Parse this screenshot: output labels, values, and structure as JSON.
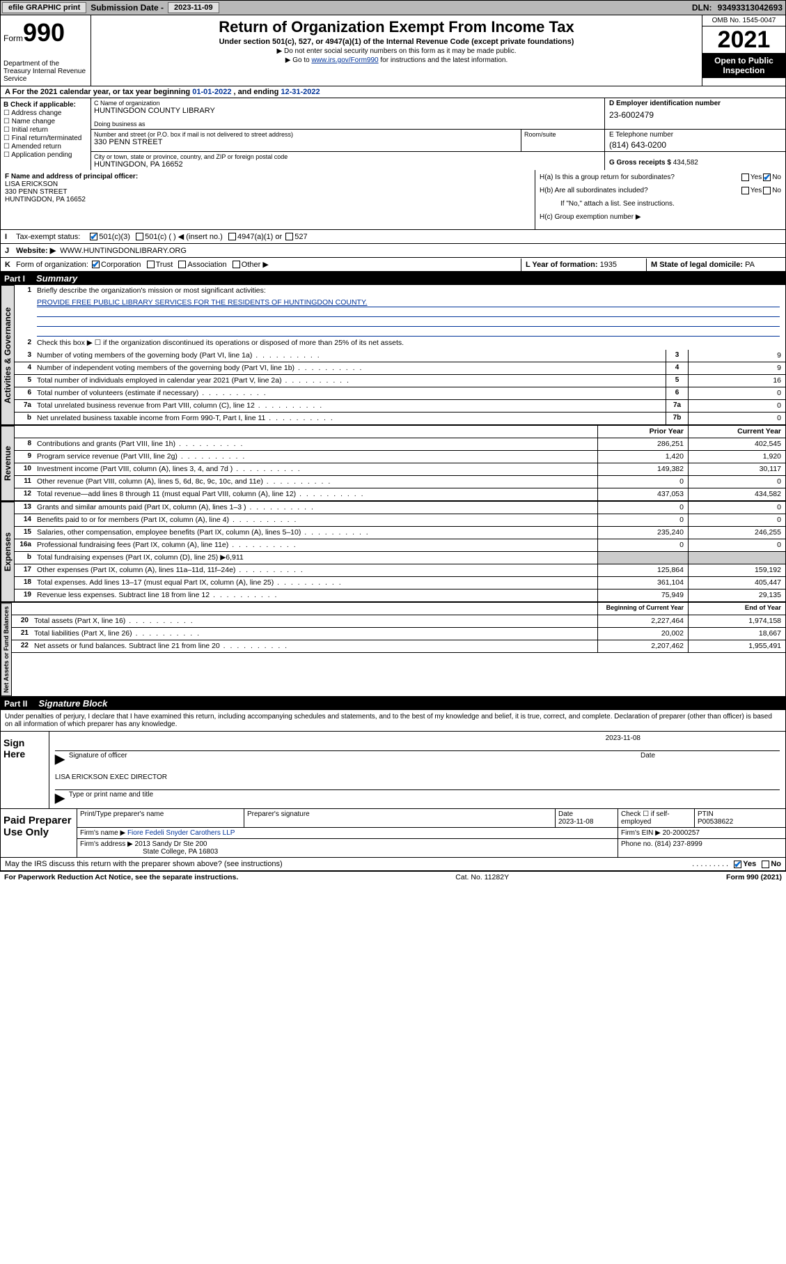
{
  "topbar": {
    "efile": "efile GRAPHIC print",
    "submission_label": "Submission Date - ",
    "submission_date": "2023-11-09",
    "dln_label": "DLN: ",
    "dln": "93493313042693"
  },
  "header": {
    "form_prefix": "Form",
    "form_no": "990",
    "dept": "Department of the Treasury\nInternal Revenue Service",
    "title": "Return of Organization Exempt From Income Tax",
    "sub": "Under section 501(c), 527, or 4947(a)(1) of the Internal Revenue Code (except private foundations)",
    "note1": "▶ Do not enter social security numbers on this form as it may be made public.",
    "note2_pre": "▶ Go to ",
    "note2_link": "www.irs.gov/Form990",
    "note2_post": " for instructions and the latest information.",
    "omb": "OMB No. 1545-0047",
    "year": "2021",
    "open": "Open to Public Inspection"
  },
  "rowA": {
    "pre": "A For the 2021 calendar year, or tax year beginning ",
    "begin": "01-01-2022",
    "mid": " , and ending ",
    "end": "12-31-2022"
  },
  "colB": {
    "label": "B Check if applicable:",
    "opts": [
      "Address change",
      "Name change",
      "Initial return",
      "Final return/terminated",
      "Amended return",
      "Application pending"
    ]
  },
  "boxC": {
    "name_label": "C Name of organization",
    "name": "HUNTINGDON COUNTY LIBRARY",
    "dba_label": "Doing business as",
    "dba": "",
    "addr_label": "Number and street (or P.O. box if mail is not delivered to street address)",
    "addr": "330 PENN STREET",
    "room_label": "Room/suite",
    "city_label": "City or town, state or province, country, and ZIP or foreign postal code",
    "city": "HUNTINGDON, PA  16652"
  },
  "boxD": {
    "label": "D Employer identification number",
    "val": "23-6002479"
  },
  "boxE": {
    "label": "E Telephone number",
    "val": "(814) 643-0200"
  },
  "boxG": {
    "label": "G Gross receipts $ ",
    "val": "434,582"
  },
  "boxF": {
    "label": "F Name and address of principal officer:",
    "name": "LISA ERICKSON",
    "addr1": "330 PENN STREET",
    "addr2": "HUNTINGDON, PA  16652"
  },
  "boxH": {
    "ha": "H(a)  Is this a group return for subordinates?",
    "ha_yes": "Yes",
    "ha_no": "No",
    "hb": "H(b)  Are all subordinates included?",
    "hb_yes": "Yes",
    "hb_no": "No",
    "hb_note": "If \"No,\" attach a list. See instructions.",
    "hc": "H(c)  Group exemption number ▶"
  },
  "rowI": {
    "lab": "I",
    "txt": "Tax-exempt status:",
    "o1": "501(c)(3)",
    "o2": "501(c) (  ) ◀ (insert no.)",
    "o3": "4947(a)(1) or",
    "o4": "527"
  },
  "rowJ": {
    "lab": "J",
    "txt": "Website: ▶",
    "val": "WWW.HUNTINGDONLIBRARY.ORG"
  },
  "rowK": {
    "lab": "K",
    "txt": "Form of organization:",
    "o1": "Corporation",
    "o2": "Trust",
    "o3": "Association",
    "o4": "Other ▶",
    "l_lab": "L Year of formation: ",
    "l_val": "1935",
    "m_lab": "M State of legal domicile: ",
    "m_val": "PA"
  },
  "part1": {
    "pn": "Part I",
    "pt": "Summary"
  },
  "gov": {
    "tab": "Activities & Governance",
    "l1": "Briefly describe the organization's mission or most significant activities:",
    "mission": "PROVIDE FREE PUBLIC LIBRARY SERVICES FOR THE RESIDENTS OF HUNTINGDON COUNTY.",
    "l2": "Check this box ▶ ☐  if the organization discontinued its operations or disposed of more than 25% of its net assets.",
    "lines": [
      {
        "n": "3",
        "t": "Number of voting members of the governing body (Part VI, line 1a)",
        "b": "3",
        "v": "9"
      },
      {
        "n": "4",
        "t": "Number of independent voting members of the governing body (Part VI, line 1b)",
        "b": "4",
        "v": "9"
      },
      {
        "n": "5",
        "t": "Total number of individuals employed in calendar year 2021 (Part V, line 2a)",
        "b": "5",
        "v": "16"
      },
      {
        "n": "6",
        "t": "Total number of volunteers (estimate if necessary)",
        "b": "6",
        "v": "0"
      },
      {
        "n": "7a",
        "t": "Total unrelated business revenue from Part VIII, column (C), line 12",
        "b": "7a",
        "v": "0"
      },
      {
        "n": "b",
        "t": "Net unrelated business taxable income from Form 990-T, Part I, line 11",
        "b": "7b",
        "v": "0"
      }
    ]
  },
  "rev": {
    "tab": "Revenue",
    "hdr_prior": "Prior Year",
    "hdr_curr": "Current Year",
    "lines": [
      {
        "n": "8",
        "t": "Contributions and grants (Part VIII, line 1h)",
        "p": "286,251",
        "c": "402,545"
      },
      {
        "n": "9",
        "t": "Program service revenue (Part VIII, line 2g)",
        "p": "1,420",
        "c": "1,920"
      },
      {
        "n": "10",
        "t": "Investment income (Part VIII, column (A), lines 3, 4, and 7d )",
        "p": "149,382",
        "c": "30,117"
      },
      {
        "n": "11",
        "t": "Other revenue (Part VIII, column (A), lines 5, 6d, 8c, 9c, 10c, and 11e)",
        "p": "0",
        "c": "0"
      },
      {
        "n": "12",
        "t": "Total revenue—add lines 8 through 11 (must equal Part VIII, column (A), line 12)",
        "p": "437,053",
        "c": "434,582"
      }
    ]
  },
  "exp": {
    "tab": "Expenses",
    "lines": [
      {
        "n": "13",
        "t": "Grants and similar amounts paid (Part IX, column (A), lines 1–3 )",
        "p": "0",
        "c": "0"
      },
      {
        "n": "14",
        "t": "Benefits paid to or for members (Part IX, column (A), line 4)",
        "p": "0",
        "c": "0"
      },
      {
        "n": "15",
        "t": "Salaries, other compensation, employee benefits (Part IX, column (A), lines 5–10)",
        "p": "235,240",
        "c": "246,255"
      },
      {
        "n": "16a",
        "t": "Professional fundraising fees (Part IX, column (A), line 11e)",
        "p": "0",
        "c": "0"
      },
      {
        "n": "b",
        "t": "Total fundraising expenses (Part IX, column (D), line 25) ▶6,911",
        "p": "",
        "c": "",
        "grey": true
      },
      {
        "n": "17",
        "t": "Other expenses (Part IX, column (A), lines 11a–11d, 11f–24e)",
        "p": "125,864",
        "c": "159,192"
      },
      {
        "n": "18",
        "t": "Total expenses. Add lines 13–17 (must equal Part IX, column (A), line 25)",
        "p": "361,104",
        "c": "405,447"
      },
      {
        "n": "19",
        "t": "Revenue less expenses. Subtract line 18 from line 12",
        "p": "75,949",
        "c": "29,135"
      }
    ]
  },
  "net": {
    "tab": "Net Assets or Fund Balances",
    "hdr_beg": "Beginning of Current Year",
    "hdr_end": "End of Year",
    "lines": [
      {
        "n": "20",
        "t": "Total assets (Part X, line 16)",
        "p": "2,227,464",
        "c": "1,974,158"
      },
      {
        "n": "21",
        "t": "Total liabilities (Part X, line 26)",
        "p": "20,002",
        "c": "18,667"
      },
      {
        "n": "22",
        "t": "Net assets or fund balances. Subtract line 21 from line 20",
        "p": "2,207,462",
        "c": "1,955,491"
      }
    ]
  },
  "part2": {
    "pn": "Part II",
    "pt": "Signature Block"
  },
  "sig": {
    "decl": "Under penalties of perjury, I declare that I have examined this return, including accompanying schedules and statements, and to the best of my knowledge and belief, it is true, correct, and complete. Declaration of preparer (other than officer) is based on all information of which preparer has any knowledge.",
    "sign_here": "Sign Here",
    "sig_officer": "Signature of officer",
    "date": "Date",
    "date_val": "2023-11-08",
    "name_title": "LISA ERICKSON  EXEC DIRECTOR",
    "name_label": "Type or print name and title"
  },
  "prep": {
    "label": "Paid Preparer Use Only",
    "h1": "Print/Type preparer's name",
    "h2": "Preparer's signature",
    "h3": "Date",
    "h3v": "2023-11-08",
    "h4": "Check ☐ if self-employed",
    "h5": "PTIN",
    "h5v": "P00538622",
    "firm_name_lab": "Firm's name   ▶",
    "firm_name": "Fiore Fedeli Snyder Carothers LLP",
    "firm_ein_lab": "Firm's EIN ▶",
    "firm_ein": "20-2000257",
    "firm_addr_lab": "Firm's address ▶",
    "firm_addr1": "2013 Sandy Dr Ste 200",
    "firm_addr2": "State College, PA  16803",
    "phone_lab": "Phone no.",
    "phone": "(814) 237-8999"
  },
  "discuss": {
    "txt": "May the IRS discuss this return with the preparer shown above? (see instructions)",
    "yes": "Yes",
    "no": "No"
  },
  "footer": {
    "l": "For Paperwork Reduction Act Notice, see the separate instructions.",
    "m": "Cat. No. 11282Y",
    "r": "Form 990 (2021)"
  },
  "colors": {
    "link": "#003399",
    "checked": "#0066cc",
    "grey": "#cccccc",
    "topbar": "#b8b8b8"
  }
}
